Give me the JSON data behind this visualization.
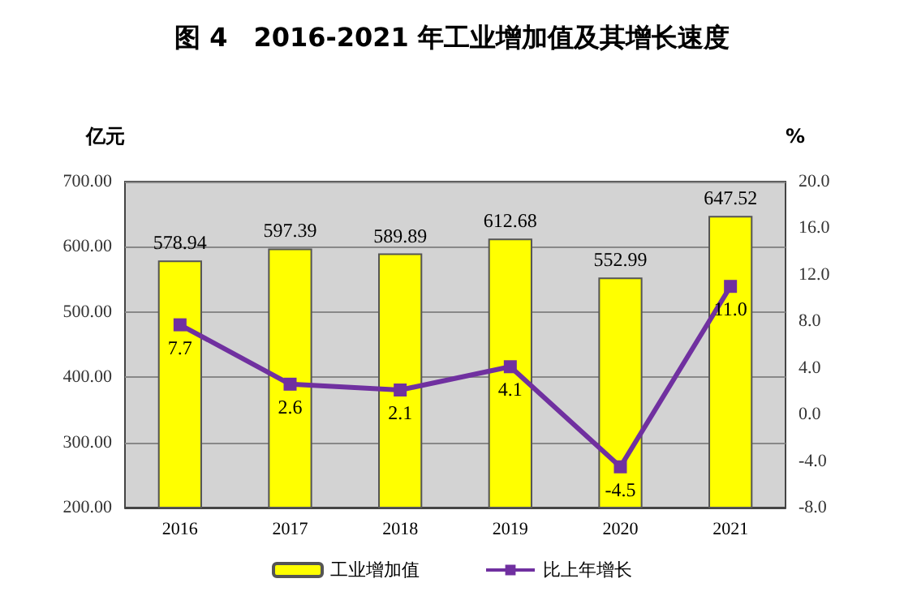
{
  "chart_data": {
    "type": "bar",
    "title": "图 4　2016-2021 年工业增加值及其增长速度",
    "ylabel": "亿元",
    "y2label": "%",
    "categories": [
      "2016",
      "2017",
      "2018",
      "2019",
      "2020",
      "2021"
    ],
    "series": [
      {
        "name": "工业增加值",
        "color": "#ffff00",
        "values": [
          578.94,
          597.39,
          589.89,
          612.68,
          552.99,
          647.52
        ]
      },
      {
        "name": "比上年增长",
        "type": "line",
        "axis": "y2",
        "color": "#7030a0",
        "values": [
          7.7,
          2.6,
          2.1,
          4.1,
          -4.5,
          11.0
        ],
        "value_labels": [
          "7.7",
          "2.6",
          "2.1",
          "4.1",
          "-4.5",
          "11.0"
        ]
      }
    ],
    "data_labels": true,
    "ylim": [
      200,
      700
    ],
    "yticks": [
      {
        "value": 200,
        "label": "200.00"
      },
      {
        "value": 300,
        "label": "300.00"
      },
      {
        "value": 400,
        "label": "400.00"
      },
      {
        "value": 500,
        "label": "500.00"
      },
      {
        "value": 600,
        "label": "600.00"
      },
      {
        "value": 700,
        "label": "700.00"
      }
    ],
    "y2lim": [
      -8,
      20
    ],
    "y2ticks": [
      {
        "value": -8,
        "label": "-8.0"
      },
      {
        "value": -4,
        "label": "-4.0"
      },
      {
        "value": 0,
        "label": "0.0"
      },
      {
        "value": 4,
        "label": "4.0"
      },
      {
        "value": 8,
        "label": "8.0"
      },
      {
        "value": 12,
        "label": "12.0"
      },
      {
        "value": 16,
        "label": "16.0"
      },
      {
        "value": 20,
        "label": "20.0"
      }
    ],
    "grid": "y",
    "legend": "bottom",
    "marker": "square"
  }
}
